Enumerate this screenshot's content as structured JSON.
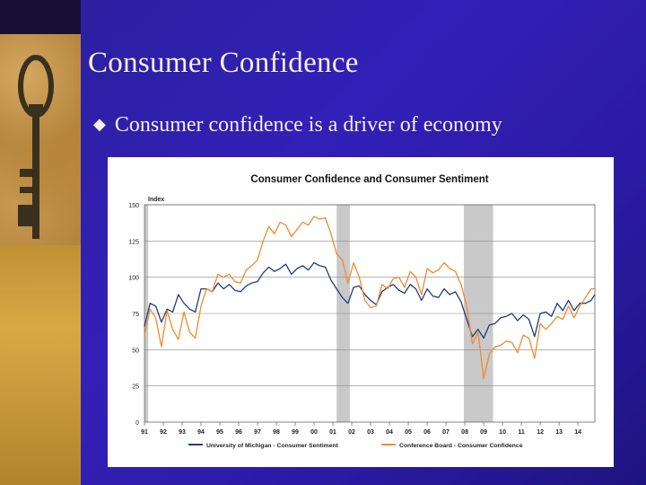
{
  "slide": {
    "title": "Consumer Confidence",
    "bullet_mark": "◆",
    "bullet_text": "Consumer confidence is a driver of economy"
  },
  "colors": {
    "michigan": "#1f3d7a",
    "conference": "#f08a2e",
    "recession": "#c9c9c9"
  },
  "chart_data": {
    "type": "line",
    "title": "Consumer Confidence and Consumer Sentiment",
    "ylabel": "Index",
    "ylim": [
      0,
      150
    ],
    "yticks": [
      0,
      25,
      50,
      75,
      100,
      125,
      150
    ],
    "xlim": [
      1991,
      2014.9
    ],
    "xticks": [
      {
        "v": 1991,
        "label": "91"
      },
      {
        "v": 1992,
        "label": "92"
      },
      {
        "v": 1993,
        "label": "93"
      },
      {
        "v": 1994,
        "label": "94"
      },
      {
        "v": 1995,
        "label": "95"
      },
      {
        "v": 1996,
        "label": "96"
      },
      {
        "v": 1997,
        "label": "97"
      },
      {
        "v": 1998,
        "label": "98"
      },
      {
        "v": 1999,
        "label": "99"
      },
      {
        "v": 2000,
        "label": "00"
      },
      {
        "v": 2001,
        "label": "01"
      },
      {
        "v": 2002,
        "label": "02"
      },
      {
        "v": 2003,
        "label": "03"
      },
      {
        "v": 2004,
        "label": "04"
      },
      {
        "v": 2005,
        "label": "05"
      },
      {
        "v": 2006,
        "label": "06"
      },
      {
        "v": 2007,
        "label": "07"
      },
      {
        "v": 2008,
        "label": "08"
      },
      {
        "v": 2009,
        "label": "09"
      },
      {
        "v": 2010,
        "label": "10"
      },
      {
        "v": 2011,
        "label": "11"
      },
      {
        "v": 2012,
        "label": "12"
      },
      {
        "v": 2013,
        "label": "13"
      },
      {
        "v": 2014,
        "label": "14"
      }
    ],
    "recessions": [
      [
        1991.0,
        1991.2
      ],
      [
        2001.2,
        2001.9
      ],
      [
        2007.95,
        2009.5
      ]
    ],
    "series": [
      {
        "name": "University of Michigan - Consumer Sentiment",
        "x": [
          1991,
          1991.3,
          1991.6,
          1991.9,
          1992.2,
          1992.5,
          1992.8,
          1993.1,
          1993.4,
          1993.7,
          1994,
          1994.3,
          1994.6,
          1994.9,
          1995.2,
          1995.5,
          1995.8,
          1996.1,
          1996.4,
          1996.7,
          1997,
          1997.3,
          1997.6,
          1997.9,
          1998.2,
          1998.5,
          1998.8,
          1999.1,
          1999.4,
          1999.7,
          2000,
          2000.3,
          2000.6,
          2000.9,
          2001.2,
          2001.5,
          2001.8,
          2002.1,
          2002.4,
          2002.7,
          2003,
          2003.3,
          2003.6,
          2003.9,
          2004.2,
          2004.5,
          2004.8,
          2005.1,
          2005.4,
          2005.7,
          2006,
          2006.3,
          2006.6,
          2006.9,
          2007.2,
          2007.5,
          2007.8,
          2008.1,
          2008.4,
          2008.7,
          2009,
          2009.3,
          2009.6,
          2009.9,
          2010.2,
          2010.5,
          2010.8,
          2011.1,
          2011.4,
          2011.7,
          2012,
          2012.3,
          2012.6,
          2012.9,
          2013.2,
          2013.5,
          2013.8,
          2014.1,
          2014.4,
          2014.7,
          2014.9
        ],
        "values": [
          66,
          82,
          80,
          69,
          78,
          76,
          88,
          82,
          78,
          76,
          92,
          92,
          90,
          96,
          92,
          95,
          91,
          90,
          94,
          96,
          97,
          103,
          107,
          104,
          106,
          109,
          102,
          106,
          108,
          105,
          110,
          108,
          107,
          98,
          92,
          86,
          82,
          93,
          94,
          88,
          84,
          81,
          90,
          93,
          95,
          91,
          89,
          95,
          92,
          84,
          92,
          87,
          86,
          92,
          88,
          90,
          83,
          71,
          59,
          64,
          58,
          67,
          68,
          72,
          73,
          75,
          70,
          74,
          71,
          59,
          75,
          76,
          73,
          82,
          77,
          84,
          77,
          82,
          82,
          84,
          88
        ]
      },
      {
        "name": "Conference Board - Consumer Confidence",
        "x": [
          1991,
          1991.3,
          1991.6,
          1991.9,
          1992.2,
          1992.5,
          1992.8,
          1993.1,
          1993.4,
          1993.7,
          1994,
          1994.3,
          1994.6,
          1994.9,
          1995.2,
          1995.5,
          1995.8,
          1996.1,
          1996.4,
          1996.7,
          1997,
          1997.3,
          1997.6,
          1997.9,
          1998.2,
          1998.5,
          1998.8,
          1999.1,
          1999.4,
          1999.7,
          2000,
          2000.3,
          2000.6,
          2000.9,
          2001.2,
          2001.5,
          2001.8,
          2002.1,
          2002.4,
          2002.7,
          2003,
          2003.3,
          2003.6,
          2003.9,
          2004.2,
          2004.5,
          2004.8,
          2005.1,
          2005.4,
          2005.7,
          2006,
          2006.3,
          2006.6,
          2006.9,
          2007.2,
          2007.5,
          2007.8,
          2008.1,
          2008.4,
          2008.7,
          2009,
          2009.3,
          2009.6,
          2009.9,
          2010.2,
          2010.5,
          2010.8,
          2011.1,
          2011.4,
          2011.7,
          2012,
          2012.3,
          2012.6,
          2012.9,
          2013.2,
          2013.5,
          2013.8,
          2014.1,
          2014.4,
          2014.7,
          2014.9
        ],
        "values": [
          60,
          78,
          72,
          52,
          77,
          64,
          57,
          76,
          62,
          58,
          80,
          92,
          90,
          102,
          100,
          102,
          97,
          96,
          105,
          108,
          112,
          125,
          135,
          130,
          138,
          136,
          128,
          133,
          138,
          136,
          142,
          140,
          141,
          130,
          116,
          112,
          96,
          110,
          100,
          84,
          79,
          80,
          95,
          92,
          99,
          100,
          93,
          104,
          100,
          88,
          106,
          103,
          105,
          110,
          106,
          104,
          95,
          80,
          54,
          62,
          30,
          47,
          52,
          53,
          56,
          55,
          48,
          60,
          58,
          44,
          68,
          64,
          68,
          73,
          71,
          80,
          72,
          80,
          86,
          92,
          92
        ]
      }
    ]
  }
}
